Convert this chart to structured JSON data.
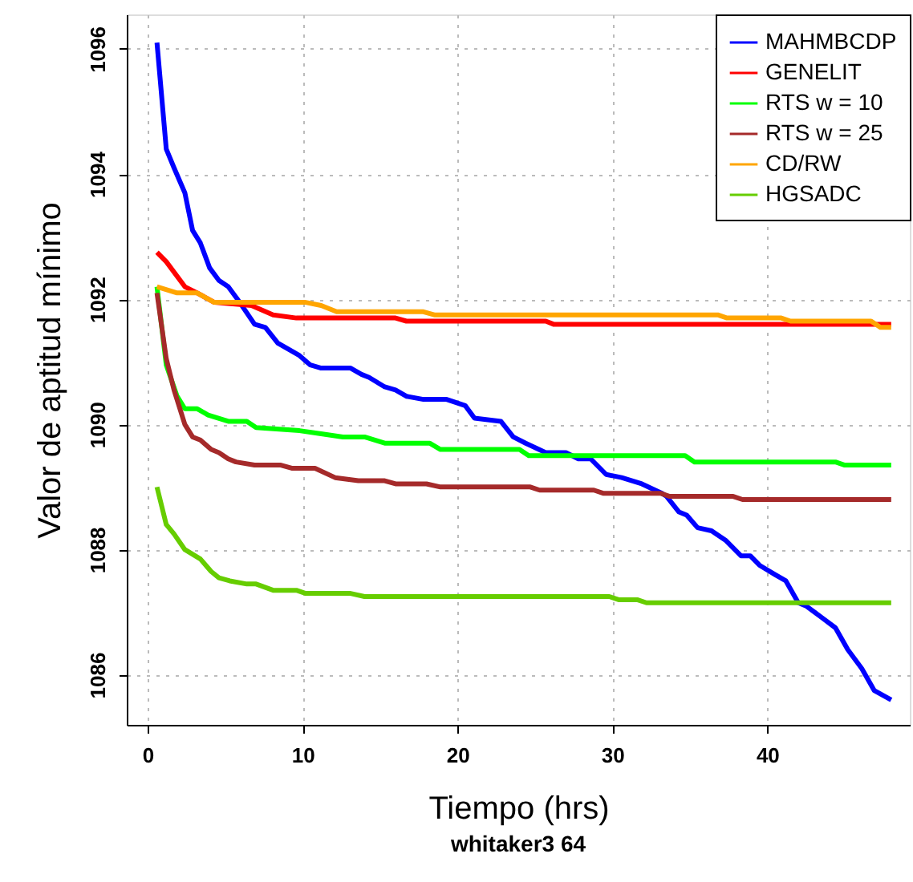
{
  "chart_data": {
    "type": "line",
    "title": "whitaker3 64",
    "xlabel": "Tiempo (hrs)",
    "ylabel": "Valor de aptitud mínimo",
    "xlim": [
      -1.35,
      49.2
    ],
    "ylim": [
      1085.2,
      1096.55
    ],
    "xticks": [
      0,
      10,
      20,
      30,
      40
    ],
    "yticks": [
      1086,
      1088,
      1090,
      1092,
      1094,
      1096
    ],
    "grid": true,
    "legend": "top right",
    "marker": "none",
    "line_style": "solid",
    "series": [
      {
        "name": "MAHMBCDP",
        "color": "#0000ff",
        "x": [
          0.6,
          1.2,
          1.7,
          2.4,
          2.9,
          3.4,
          4.0,
          4.6,
          5.2,
          5.8,
          6.9,
          7.6,
          8.4,
          9.1,
          9.8,
          10.5,
          11.2,
          11.9,
          13.1,
          13.8,
          14.3,
          15.3,
          16.0,
          16.7,
          17.8,
          19.3,
          20.5,
          21.1,
          22.8,
          23.6,
          24.4,
          25.7,
          27.0,
          27.8,
          28.6,
          29.6,
          30.6,
          31.9,
          33.2,
          33.5,
          34.3,
          34.8,
          35.5,
          36.4,
          37.3,
          38.3,
          38.9,
          39.5,
          40.5,
          41.2,
          42.0,
          42.5,
          43.6,
          44.4,
          45.2,
          46.1,
          46.9,
          48.0
        ],
        "values": [
          1096.1,
          1094.4,
          1094.1,
          1093.7,
          1093.1,
          1092.9,
          1092.5,
          1092.3,
          1092.2,
          1092.0,
          1091.6,
          1091.55,
          1091.3,
          1091.2,
          1091.1,
          1090.95,
          1090.9,
          1090.9,
          1090.9,
          1090.8,
          1090.75,
          1090.6,
          1090.55,
          1090.45,
          1090.4,
          1090.4,
          1090.3,
          1090.1,
          1090.05,
          1089.8,
          1089.7,
          1089.55,
          1089.55,
          1089.45,
          1089.45,
          1089.2,
          1089.15,
          1089.05,
          1088.9,
          1088.85,
          1088.6,
          1088.55,
          1088.35,
          1088.3,
          1088.15,
          1087.9,
          1087.9,
          1087.75,
          1087.6,
          1087.5,
          1087.15,
          1087.1,
          1086.9,
          1086.75,
          1086.4,
          1086.1,
          1085.75,
          1085.6
        ]
      },
      {
        "name": "GENELIT",
        "color": "#ff0000",
        "x": [
          0.6,
          1.2,
          2.4,
          3.2,
          4.3,
          6.7,
          8.1,
          9.6,
          16.0,
          16.7,
          25.7,
          26.2,
          48.0
        ],
        "values": [
          1092.75,
          1092.6,
          1092.2,
          1092.1,
          1091.95,
          1091.9,
          1091.75,
          1091.7,
          1091.7,
          1091.65,
          1091.65,
          1091.6,
          1091.6
        ]
      },
      {
        "name": "RTS w = 10",
        "color": "#00ff00",
        "x": [
          0.6,
          1.2,
          1.9,
          2.4,
          3.2,
          3.9,
          5.2,
          6.4,
          7.0,
          9.8,
          11.2,
          12.6,
          14.0,
          15.3,
          16.7,
          18.2,
          18.9,
          24.0,
          24.6,
          29.8,
          30.4,
          34.7,
          35.3,
          44.4,
          45.0,
          48.0
        ],
        "values": [
          1092.2,
          1090.95,
          1090.45,
          1090.25,
          1090.25,
          1090.15,
          1090.05,
          1090.05,
          1089.95,
          1089.9,
          1089.85,
          1089.8,
          1089.8,
          1089.7,
          1089.7,
          1089.7,
          1089.6,
          1089.6,
          1089.5,
          1089.5,
          1089.5,
          1089.5,
          1089.4,
          1089.4,
          1089.35,
          1089.35
        ]
      },
      {
        "name": "RTS w = 25",
        "color": "#a52a2a",
        "x": [
          0.6,
          1.2,
          1.7,
          2.4,
          2.9,
          3.4,
          4.1,
          4.6,
          5.2,
          5.7,
          6.9,
          8.6,
          9.3,
          10.8,
          12.1,
          13.6,
          15.3,
          16.0,
          18.0,
          18.9,
          24.7,
          25.3,
          28.8,
          29.4,
          30.9,
          31.5,
          33.1,
          33.7,
          37.8,
          38.4,
          48.0
        ],
        "values": [
          1092.1,
          1091.05,
          1090.55,
          1090.0,
          1089.8,
          1089.75,
          1089.6,
          1089.55,
          1089.45,
          1089.4,
          1089.35,
          1089.35,
          1089.3,
          1089.3,
          1089.15,
          1089.1,
          1089.1,
          1089.05,
          1089.05,
          1089.0,
          1089.0,
          1088.95,
          1088.95,
          1088.9,
          1088.9,
          1088.9,
          1088.9,
          1088.85,
          1088.85,
          1088.8,
          1088.8
        ]
      },
      {
        "name": "CD/RW",
        "color": "#ffa500",
        "x": [
          0.6,
          1.9,
          3.2,
          4.3,
          10.2,
          11.2,
          12.2,
          17.8,
          18.5,
          31.9,
          32.5,
          36.8,
          37.4,
          40.9,
          41.5,
          46.7,
          47.3,
          48.0
        ],
        "values": [
          1092.2,
          1092.1,
          1092.1,
          1091.95,
          1091.95,
          1091.9,
          1091.8,
          1091.8,
          1091.75,
          1091.75,
          1091.75,
          1091.75,
          1091.7,
          1091.7,
          1091.65,
          1091.65,
          1091.55,
          1091.55
        ]
      },
      {
        "name": "HGSADC",
        "color": "#66cd00",
        "x": [
          0.6,
          1.2,
          1.7,
          2.4,
          3.4,
          4.1,
          4.6,
          5.3,
          6.4,
          7.0,
          8.1,
          9.6,
          10.2,
          11.5,
          13.1,
          14.0,
          29.8,
          30.4,
          31.6,
          32.2,
          48.0
        ],
        "values": [
          1089.0,
          1088.4,
          1088.25,
          1088.0,
          1087.85,
          1087.65,
          1087.55,
          1087.5,
          1087.45,
          1087.45,
          1087.35,
          1087.35,
          1087.3,
          1087.3,
          1087.3,
          1087.25,
          1087.25,
          1087.2,
          1087.2,
          1087.15,
          1087.15
        ]
      }
    ]
  }
}
